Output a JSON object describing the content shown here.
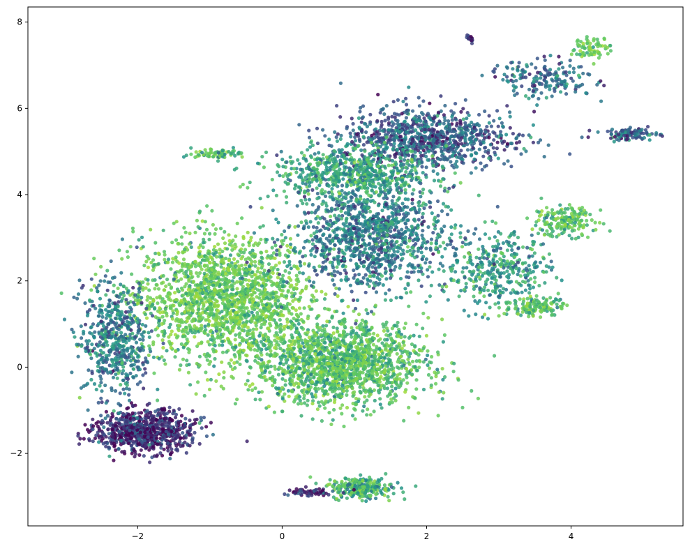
{
  "chart_data": {
    "type": "scatter",
    "title": "",
    "xlabel": "",
    "ylabel": "",
    "xlim": [
      -3.52,
      5.55
    ],
    "ylim": [
      -3.68,
      8.35
    ],
    "x_ticks": [
      {
        "value": -2,
        "label": "−2"
      },
      {
        "value": 0,
        "label": "0"
      },
      {
        "value": 2,
        "label": "2"
      },
      {
        "value": 4,
        "label": "4"
      }
    ],
    "y_ticks": [
      {
        "value": -2,
        "label": "−2"
      },
      {
        "value": 0,
        "label": "0"
      },
      {
        "value": 2,
        "label": "2"
      },
      {
        "value": 4,
        "label": "4"
      },
      {
        "value": 6,
        "label": "6"
      },
      {
        "value": 8,
        "label": "8"
      }
    ],
    "grid": false,
    "legend": "none",
    "colormap": "viridis",
    "color_range": [
      "#440154",
      "#3b528b",
      "#21918c",
      "#5ec962",
      "#a0da39"
    ],
    "clusters": [
      {
        "center": [
          -0.8,
          1.6
        ],
        "spread": [
          1.0,
          1.2
        ],
        "weight": 0.2,
        "color_mean": 0.78
      },
      {
        "center": [
          0.8,
          0.1
        ],
        "spread": [
          1.0,
          0.8
        ],
        "weight": 0.18,
        "color_mean": 0.72
      },
      {
        "center": [
          1.2,
          3.0
        ],
        "spread": [
          0.9,
          1.0
        ],
        "weight": 0.13,
        "color_mean": 0.42
      },
      {
        "center": [
          2.0,
          5.3
        ],
        "spread": [
          1.0,
          0.6
        ],
        "weight": 0.1,
        "color_mean": 0.3
      },
      {
        "center": [
          -1.9,
          -1.5
        ],
        "spread": [
          0.55,
          0.4
        ],
        "weight": 0.09,
        "color_mean": 0.12
      },
      {
        "center": [
          -2.3,
          0.6
        ],
        "spread": [
          0.4,
          1.1
        ],
        "weight": 0.06,
        "color_mean": 0.4
      },
      {
        "center": [
          1.0,
          4.5
        ],
        "spread": [
          0.9,
          0.5
        ],
        "weight": 0.07,
        "color_mean": 0.58
      },
      {
        "center": [
          3.0,
          2.3
        ],
        "spread": [
          0.6,
          0.7
        ],
        "weight": 0.04,
        "color_mean": 0.55
      },
      {
        "center": [
          3.9,
          3.4
        ],
        "spread": [
          0.35,
          0.3
        ],
        "weight": 0.02,
        "color_mean": 0.7
      },
      {
        "center": [
          3.5,
          1.4
        ],
        "spread": [
          0.35,
          0.2
        ],
        "weight": 0.015,
        "color_mean": 0.75
      },
      {
        "center": [
          1.1,
          -2.8
        ],
        "spread": [
          0.35,
          0.2
        ],
        "weight": 0.03,
        "color_mean": 0.65
      },
      {
        "center": [
          3.6,
          6.7
        ],
        "spread": [
          0.6,
          0.35
        ],
        "weight": 0.02,
        "color_mean": 0.35
      },
      {
        "center": [
          4.3,
          7.4
        ],
        "spread": [
          0.25,
          0.2
        ],
        "weight": 0.008,
        "color_mean": 0.8
      },
      {
        "center": [
          4.8,
          5.4
        ],
        "spread": [
          0.3,
          0.12
        ],
        "weight": 0.012,
        "color_mean": 0.35
      },
      {
        "center": [
          -0.9,
          4.95
        ],
        "spread": [
          0.3,
          0.1
        ],
        "weight": 0.008,
        "color_mean": 0.72
      },
      {
        "center": [
          0.4,
          -2.9
        ],
        "spread": [
          0.3,
          0.08
        ],
        "weight": 0.006,
        "color_mean": 0.1
      },
      {
        "center": [
          2.6,
          7.6
        ],
        "spread": [
          0.05,
          0.08
        ],
        "weight": 0.002,
        "color_mean": 0.1
      }
    ]
  }
}
